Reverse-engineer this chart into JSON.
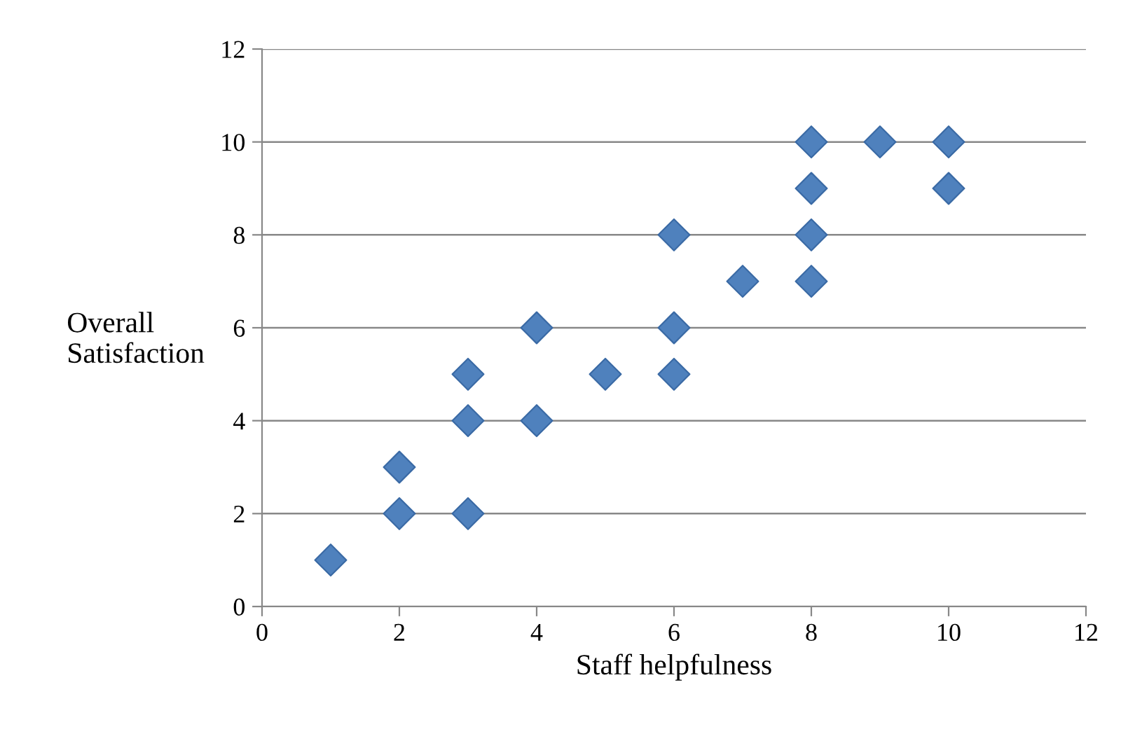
{
  "chart_data": {
    "type": "scatter",
    "xlabel": "Staff helpfulness",
    "ylabel": "Overall Satisfaction",
    "x": [
      1,
      2,
      2,
      3,
      3,
      3,
      4,
      4,
      5,
      6,
      6,
      6,
      7,
      8,
      8,
      8,
      8,
      9,
      10,
      10
    ],
    "series": [
      {
        "color": "#4f81bd",
        "values": [
          1,
          2,
          3,
          2,
          4,
          5,
          4,
          6,
          5,
          5,
          6,
          8,
          7,
          7,
          8,
          9,
          10,
          10,
          10,
          9
        ]
      }
    ],
    "xlim": [
      0,
      12
    ],
    "xticks": [
      0,
      2,
      4,
      6,
      8,
      10,
      12
    ],
    "ylim": [
      0,
      12
    ],
    "yticks": [
      0,
      2,
      4,
      6,
      8,
      10,
      12
    ],
    "grid": "y",
    "marker": "diamond"
  }
}
